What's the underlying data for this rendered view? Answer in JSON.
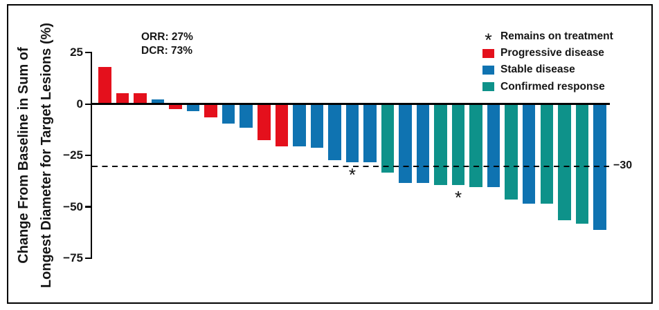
{
  "figure": {
    "stats": {
      "orr": "ORR: 27%",
      "dcr": "DCR: 73%"
    },
    "asterisk_symbol": "*",
    "ref_label": "−30",
    "y_axis": {
      "title_line1": "Change From Baseline in Sum of",
      "title_line2": "Longest Diameter for Target Lesions (%)",
      "tick_labels": [
        "25",
        "0",
        "−25",
        "−50",
        "−75"
      ]
    },
    "legend": {
      "remains": {
        "symbol": "*",
        "label": "Remains on treatment"
      },
      "pd": {
        "label": "Progressive disease",
        "color": "#e4101c"
      },
      "sd": {
        "label": "Stable disease",
        "color": "#0f73b1"
      },
      "cr": {
        "label": "Confirmed response",
        "color": "#0e928a"
      }
    }
  },
  "chart_data": {
    "type": "bar",
    "subtype": "waterfall",
    "title": "",
    "xlabel": "",
    "ylabel": "Change From Baseline in Sum of Longest Diameter for Target Lesions (%)",
    "ylim": [
      -75,
      25
    ],
    "yticks": [
      25,
      0,
      -25,
      -50,
      -75
    ],
    "grid": false,
    "legend_position": "top-right",
    "reference_line": {
      "value": -30,
      "label": "−30",
      "style": "dashed"
    },
    "annotations": {
      "orr": "ORR: 27%",
      "dcr": "DCR: 73%",
      "asterisk_meaning": "Remains on treatment"
    },
    "series_colors": {
      "pd": "#e4101c",
      "sd": "#0f73b1",
      "cr": "#0e928a"
    },
    "series_labels": {
      "pd": "Progressive disease",
      "sd": "Stable disease",
      "cr": "Confirmed response"
    },
    "bars": [
      {
        "value": 18,
        "status": "pd",
        "on_treatment": false
      },
      {
        "value": 5,
        "status": "pd",
        "on_treatment": false
      },
      {
        "value": 5,
        "status": "pd",
        "on_treatment": false
      },
      {
        "value": 2,
        "status": "sd",
        "on_treatment": false
      },
      {
        "value": -2,
        "status": "pd",
        "on_treatment": false
      },
      {
        "value": -3,
        "status": "sd",
        "on_treatment": false
      },
      {
        "value": -6,
        "status": "pd",
        "on_treatment": false
      },
      {
        "value": -9,
        "status": "sd",
        "on_treatment": false
      },
      {
        "value": -11,
        "status": "sd",
        "on_treatment": false
      },
      {
        "value": -17,
        "status": "pd",
        "on_treatment": false
      },
      {
        "value": -20,
        "status": "pd",
        "on_treatment": false
      },
      {
        "value": -20,
        "status": "sd",
        "on_treatment": false
      },
      {
        "value": -21,
        "status": "sd",
        "on_treatment": false
      },
      {
        "value": -27,
        "status": "sd",
        "on_treatment": false
      },
      {
        "value": -28,
        "status": "sd",
        "on_treatment": true
      },
      {
        "value": -28,
        "status": "sd",
        "on_treatment": false
      },
      {
        "value": -33,
        "status": "cr",
        "on_treatment": false
      },
      {
        "value": -38,
        "status": "sd",
        "on_treatment": false
      },
      {
        "value": -38,
        "status": "sd",
        "on_treatment": false
      },
      {
        "value": -39,
        "status": "cr",
        "on_treatment": false
      },
      {
        "value": -39,
        "status": "cr",
        "on_treatment": true
      },
      {
        "value": -40,
        "status": "cr",
        "on_treatment": false
      },
      {
        "value": -40,
        "status": "sd",
        "on_treatment": false
      },
      {
        "value": -46,
        "status": "cr",
        "on_treatment": false
      },
      {
        "value": -48,
        "status": "sd",
        "on_treatment": false
      },
      {
        "value": -48,
        "status": "cr",
        "on_treatment": false
      },
      {
        "value": -56,
        "status": "cr",
        "on_treatment": false
      },
      {
        "value": -58,
        "status": "cr",
        "on_treatment": false
      },
      {
        "value": -61,
        "status": "sd",
        "on_treatment": false
      }
    ]
  }
}
